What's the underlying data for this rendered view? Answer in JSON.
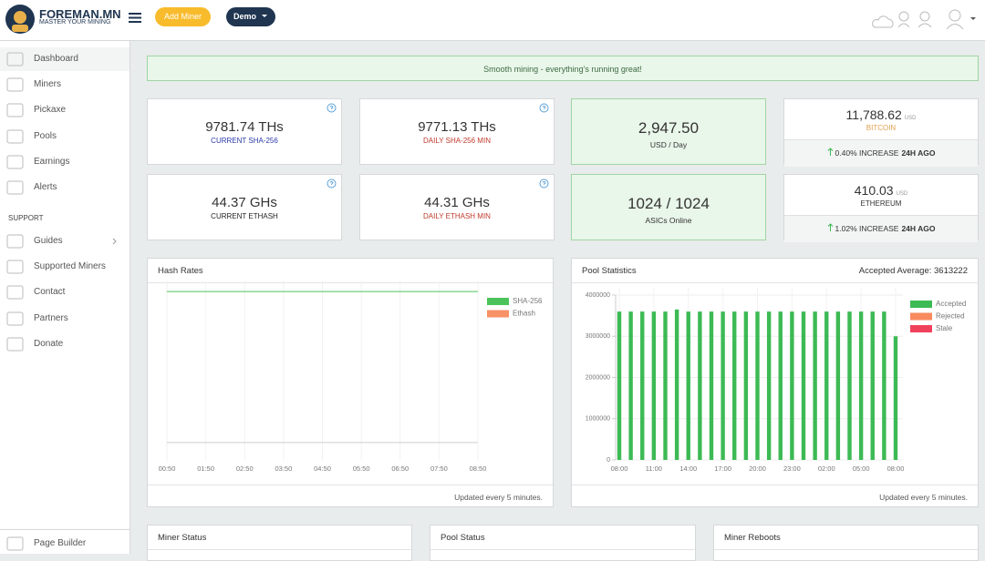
{
  "header": {
    "brand": "FOREMAN.MN",
    "tagline": "MASTER YOUR MINING",
    "add_miner": "Add Miner",
    "demo": "Demo"
  },
  "sidebar": {
    "items": [
      "Dashboard",
      "Miners",
      "Pickaxe",
      "Pools",
      "Earnings",
      "Alerts"
    ],
    "support_heading": "SUPPORT",
    "support_items": [
      "Guides",
      "Supported Miners",
      "Contact",
      "Partners",
      "Donate"
    ],
    "footer": "Page Builder"
  },
  "banner": "Smooth mining - everything's running great!",
  "stats": [
    {
      "value": "9781.74 THs",
      "label": "CURRENT SHA-256"
    },
    {
      "value": "9771.13 THs",
      "label": "DAILY SHA-256 MIN"
    },
    {
      "value": "44.37 GHs",
      "label": "CURRENT ETHASH"
    },
    {
      "value": "44.31 GHs",
      "label": "DAILY ETHASH MIN"
    }
  ],
  "earnings": [
    {
      "value": "2,947.50",
      "label": "USD / Day"
    },
    {
      "value": "1024 / 1024",
      "label": "ASICs Online"
    }
  ],
  "prices": [
    {
      "value": "11,788.62",
      "unit": "USD",
      "name": "BITCOIN",
      "change": "0.40% INCREASE",
      "period": "24H AGO"
    },
    {
      "value": "410.03",
      "unit": "USD",
      "name": "ETHEREUM",
      "change": "1.02% INCREASE",
      "period": "24H AGO"
    }
  ],
  "chart_data": [
    {
      "type": "line",
      "title": "Hash Rates",
      "footer": "Updated every 5 minutes.",
      "categories": [
        "00:50",
        "01:50",
        "02:50",
        "03:50",
        "04:50",
        "05:50",
        "06:50",
        "07:50",
        "08:50"
      ],
      "series": [
        {
          "name": "SHA-256",
          "color": "#4cc35a",
          "values": [
            9781.74,
            9781.74,
            9781.74,
            9781.74,
            9781.74,
            9781.74,
            9781.74,
            9781.74,
            9781.74
          ]
        },
        {
          "name": "Ethash",
          "color": "#f79266",
          "axis": "y2",
          "values": [
            44.37,
            44.37,
            44.37,
            44.37,
            44.37,
            44.37,
            44.37,
            44.37,
            44.37
          ]
        }
      ],
      "ylim": [
        0,
        10000
      ],
      "y2lim": [
        0,
        420
      ],
      "legend": "top-right"
    },
    {
      "type": "bar",
      "title": "Pool Statistics",
      "subtitle": "Accepted Average: 3613222",
      "footer": "Updated every 5 minutes.",
      "categories": [
        "08:00",
        null,
        null,
        "11:00",
        null,
        null,
        "14:00",
        null,
        null,
        "17:00",
        null,
        null,
        "20:00",
        null,
        null,
        "23:00",
        null,
        null,
        "02:00",
        null,
        null,
        "05:00",
        null,
        null,
        "08:00"
      ],
      "series": [
        {
          "name": "Accepted",
          "color": "#3cba54",
          "values": [
            3600000,
            3600000,
            3600000,
            3600000,
            3600000,
            3650000,
            3600000,
            3600000,
            3600000,
            3600000,
            3600000,
            3600000,
            3600000,
            3600000,
            3600000,
            3600000,
            3600000,
            3600000,
            3600000,
            3600000,
            3600000,
            3600000,
            3600000,
            3600000,
            3000000
          ]
        },
        {
          "name": "Rejected",
          "color": "#f98a5e",
          "values": [
            0,
            0,
            0,
            0,
            0,
            0,
            0,
            0,
            0,
            0,
            0,
            0,
            0,
            0,
            0,
            0,
            0,
            0,
            0,
            0,
            0,
            0,
            0,
            0,
            0
          ]
        },
        {
          "name": "Stale",
          "color": "#f0415c",
          "values": [
            0,
            0,
            0,
            0,
            0,
            0,
            0,
            0,
            0,
            0,
            0,
            0,
            0,
            0,
            0,
            0,
            0,
            0,
            0,
            0,
            0,
            0,
            0,
            0,
            0
          ]
        }
      ],
      "ylim": [
        0,
        4000000
      ],
      "yticks": [
        0,
        1000000,
        2000000,
        3000000,
        4000000
      ],
      "grid": true,
      "legend": "top-right"
    }
  ],
  "bottom_panels": [
    "Miner Status",
    "Pool Status",
    "Miner Reboots"
  ]
}
